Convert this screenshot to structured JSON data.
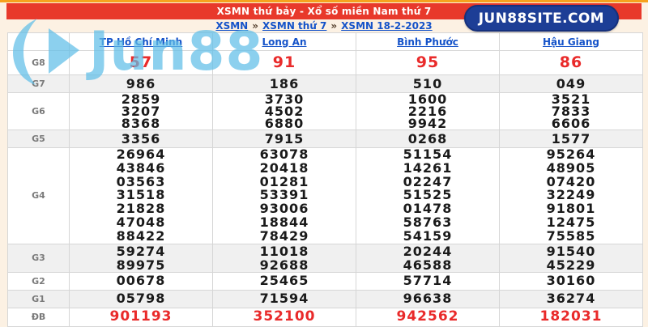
{
  "header": {
    "title": "XSMN thứ bảy - Xổ số miền Nam thứ 7",
    "badge": "JUN88SITE.COM"
  },
  "breadcrumb": {
    "separator": "»",
    "items": [
      "XSMN",
      "XSMN thứ 7",
      "XSMN 18-2-2023"
    ]
  },
  "watermark": {
    "text": "Jun88"
  },
  "colors": {
    "title_bar": "#e8392b",
    "badge_blue": "#1d3e96",
    "link_blue": "#1553c9",
    "highlight_red": "#e92a2a",
    "alt_row": "#f0f0f0",
    "page_bg": "#fcf1e3"
  },
  "table": {
    "columns": [
      "TP Hồ Chí Minh",
      "Long An",
      "Bình Phước",
      "Hậu Giang"
    ],
    "rows": [
      {
        "label": "G8",
        "style": "g8",
        "values": [
          [
            "57"
          ],
          [
            "91"
          ],
          [
            "95"
          ],
          [
            "86"
          ]
        ]
      },
      {
        "label": "G7",
        "style": "normal",
        "values": [
          [
            "986"
          ],
          [
            "186"
          ],
          [
            "510"
          ],
          [
            "049"
          ]
        ]
      },
      {
        "label": "G6",
        "style": "normal",
        "values": [
          [
            "2859",
            "3207",
            "8368"
          ],
          [
            "3730",
            "4502",
            "6880"
          ],
          [
            "1600",
            "2216",
            "9942"
          ],
          [
            "3521",
            "7833",
            "6606"
          ]
        ]
      },
      {
        "label": "G5",
        "style": "normal",
        "values": [
          [
            "3356"
          ],
          [
            "7915"
          ],
          [
            "0268"
          ],
          [
            "1577"
          ]
        ]
      },
      {
        "label": "G4",
        "style": "normal",
        "values": [
          [
            "26964",
            "43846",
            "03563",
            "31518",
            "21828",
            "47048",
            "88422"
          ],
          [
            "63078",
            "20418",
            "01281",
            "53391",
            "93006",
            "18844",
            "78429"
          ],
          [
            "51154",
            "14261",
            "02247",
            "51525",
            "01478",
            "58763",
            "54159"
          ],
          [
            "95264",
            "48905",
            "07420",
            "32249",
            "91801",
            "12475",
            "75585"
          ]
        ]
      },
      {
        "label": "G3",
        "style": "normal",
        "values": [
          [
            "59274",
            "89975"
          ],
          [
            "11018",
            "92688"
          ],
          [
            "20244",
            "46588"
          ],
          [
            "91540",
            "45229"
          ]
        ]
      },
      {
        "label": "G2",
        "style": "normal",
        "values": [
          [
            "00678"
          ],
          [
            "25465"
          ],
          [
            "57714"
          ],
          [
            "30160"
          ]
        ]
      },
      {
        "label": "G1",
        "style": "normal",
        "values": [
          [
            "05798"
          ],
          [
            "71594"
          ],
          [
            "96638"
          ],
          [
            "36274"
          ]
        ]
      },
      {
        "label": "ĐB",
        "style": "db",
        "values": [
          [
            "901193"
          ],
          [
            "352100"
          ],
          [
            "942562"
          ],
          [
            "182031"
          ]
        ]
      }
    ]
  }
}
